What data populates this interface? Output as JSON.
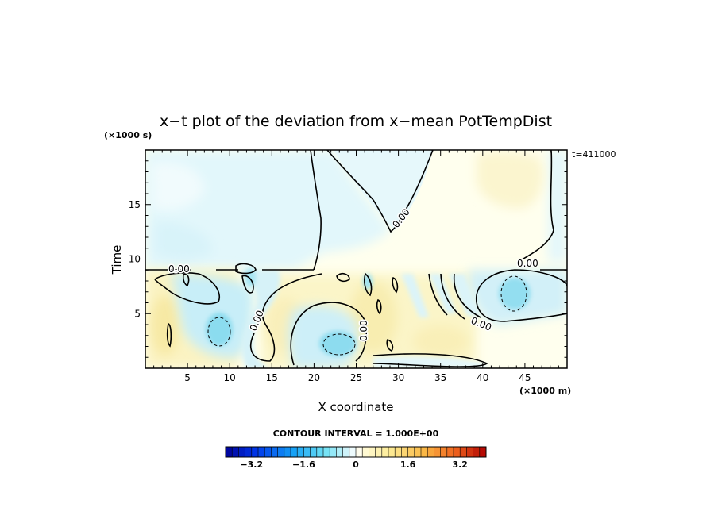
{
  "chart_data": {
    "type": "contour",
    "title": "x−t plot of the deviation from x−mean PotTempDist",
    "xlabel": "X coordinate",
    "ylabel": "Time",
    "x_unit": "(×1000 m)",
    "y_unit": "(×1000 s)",
    "time_label": "t=411000",
    "xlim": [
      0,
      50
    ],
    "ylim": [
      0,
      20
    ],
    "x_ticks": [
      5,
      10,
      15,
      20,
      25,
      30,
      35,
      40,
      45
    ],
    "x_tick_labels": [
      "5",
      "10",
      "15",
      "20",
      "25",
      "30",
      "35",
      "40",
      "45"
    ],
    "y_ticks": [
      5,
      10,
      15
    ],
    "y_tick_labels": [
      "5",
      "10",
      "15"
    ],
    "contour_labels": [
      "0.00",
      "0.00",
      "0.00",
      "0.00",
      "0.00",
      "0.00"
    ],
    "contour_interval_text": "CONTOUR INTERVAL = 1.000E+00",
    "colorbar": {
      "min": -4,
      "max": 4,
      "n_bins": 40,
      "tick_values": [
        -3.2,
        -1.6,
        0,
        1.6,
        3.2
      ],
      "tick_labels": [
        "−3.2",
        "−1.6",
        "0",
        "1.6",
        "3.2"
      ]
    },
    "features": [
      {
        "kind": "negative",
        "x": 8.7,
        "t": 3.5,
        "value": -1.4
      },
      {
        "kind": "negative",
        "x": 22.2,
        "t": 2.0,
        "value": -1.4
      },
      {
        "kind": "negative",
        "x": 43.5,
        "t": 7.0,
        "value": -1.3
      },
      {
        "kind": "positive",
        "x": 2.5,
        "t": 4.5,
        "value": 0.6
      },
      {
        "kind": "positive",
        "x": 27.5,
        "t": 5.0,
        "value": 0.5
      },
      {
        "kind": "positive",
        "x": 38.5,
        "t": 2.5,
        "value": 0.4
      }
    ]
  }
}
